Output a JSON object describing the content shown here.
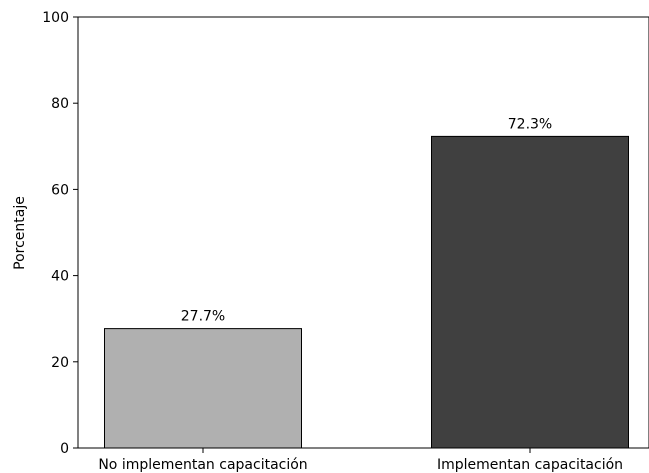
{
  "chart_data": {
    "type": "bar",
    "categories": [
      "No implementan capacitación",
      "Implementan capacitación"
    ],
    "values": [
      27.7,
      72.3
    ],
    "data_labels": [
      "27.7%",
      "72.3%"
    ],
    "bar_colors": [
      "#b0b0b0",
      "#404040"
    ],
    "edge_color": "#000000",
    "title": "",
    "xlabel": "",
    "ylabel": "Porcentaje",
    "ylim": [
      0,
      100
    ],
    "yticks": [
      0,
      20,
      40,
      60,
      80,
      100
    ],
    "grid": false
  }
}
